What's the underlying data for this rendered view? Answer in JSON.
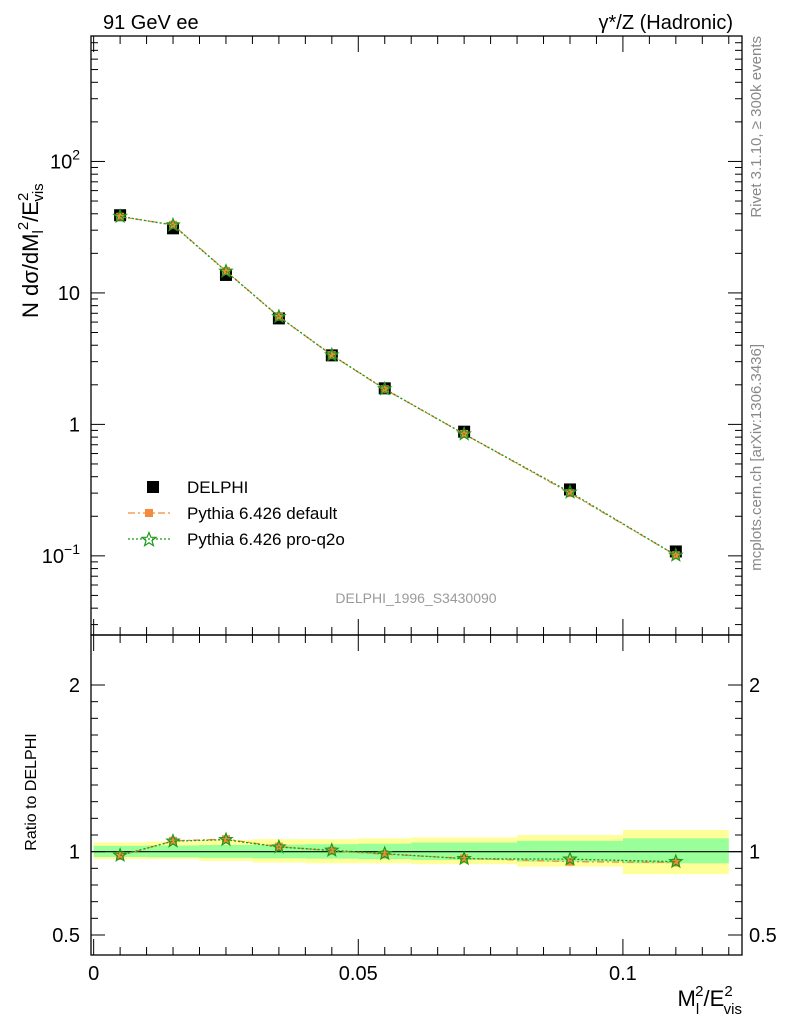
{
  "header": {
    "left_label": "91 GeV ee",
    "right_label": "γ*/Z (Hadronic)"
  },
  "side_labels": {
    "rivet": "Rivet 3.1.10, ≥ 300k events",
    "mcplots": "mcplots.cern.ch [arXiv:1306.3436]"
  },
  "watermark": "DELPHI_1996_S3430090",
  "chart_data": [
    {
      "type": "scatter",
      "panel": "main",
      "ylabel": "N dσ/dM_l^2/E_vis^2",
      "yscale": "log",
      "ylim": [
        0.025,
        900
      ],
      "xlim": [
        -0.0005,
        0.1225
      ],
      "y_tick_labels": [
        "10^-1",
        "1",
        "10",
        "10^2"
      ],
      "legend_position": "bottom-left",
      "series": [
        {
          "name": "DELPHI",
          "style": "black-square-markers",
          "color": "#000000",
          "x": [
            0.005,
            0.015,
            0.025,
            0.035,
            0.045,
            0.055,
            0.07,
            0.09,
            0.11
          ],
          "y": [
            39.0,
            31.0,
            13.7,
            6.4,
            3.35,
            1.88,
            0.88,
            0.32,
            0.108
          ]
        },
        {
          "name": "Pythia 6.426 default",
          "style": "orange-dashdot-squares",
          "color": "#f58a3c",
          "x": [
            0.005,
            0.015,
            0.025,
            0.035,
            0.045,
            0.055,
            0.07,
            0.09,
            0.11
          ],
          "y": [
            38.0,
            33.0,
            14.7,
            6.6,
            3.36,
            1.85,
            0.845,
            0.3,
            0.101
          ]
        },
        {
          "name": "Pythia 6.426 pro-q2o",
          "style": "green-dotted-stars",
          "color": "#1a9a1a",
          "x": [
            0.005,
            0.015,
            0.025,
            0.035,
            0.045,
            0.055,
            0.07,
            0.09,
            0.11
          ],
          "y": [
            38.2,
            32.8,
            14.6,
            6.6,
            3.37,
            1.86,
            0.845,
            0.305,
            0.101
          ]
        }
      ]
    },
    {
      "type": "scatter",
      "panel": "ratio",
      "ylabel": "Ratio to DELPHI",
      "xlabel": "M_l^2/E_vis^2",
      "ylim": [
        0.38,
        2.3
      ],
      "y_ticks": [
        0.5,
        1,
        2
      ],
      "x_ticks": [
        0,
        0.05,
        0.1
      ],
      "bands": {
        "x_edges": [
          0.0,
          0.01,
          0.02,
          0.03,
          0.04,
          0.05,
          0.06,
          0.08,
          0.1,
          0.12
        ],
        "yellow_lo": [
          0.955,
          0.955,
          0.945,
          0.935,
          0.93,
          0.93,
          0.925,
          0.91,
          0.865
        ],
        "yellow_hi": [
          1.055,
          1.06,
          1.07,
          1.075,
          1.075,
          1.08,
          1.085,
          1.1,
          1.13
        ],
        "green_lo": [
          0.968,
          0.966,
          0.963,
          0.96,
          0.958,
          0.955,
          0.95,
          0.94,
          0.93
        ],
        "green_hi": [
          1.035,
          1.037,
          1.04,
          1.042,
          1.045,
          1.048,
          1.055,
          1.065,
          1.08
        ],
        "yellow_color": "#ffff99",
        "green_color": "#99ff99"
      },
      "series": [
        {
          "name": "Pythia 6.426 default",
          "color": "#f58a3c",
          "x": [
            0.005,
            0.015,
            0.025,
            0.035,
            0.045,
            0.055,
            0.07,
            0.09,
            0.11
          ],
          "y": [
            0.975,
            1.065,
            1.075,
            1.03,
            1.005,
            0.985,
            0.96,
            0.94,
            0.935
          ]
        },
        {
          "name": "Pythia 6.426 pro-q2o",
          "color": "#1a9a1a",
          "x": [
            0.005,
            0.015,
            0.025,
            0.035,
            0.045,
            0.055,
            0.07,
            0.09,
            0.11
          ],
          "y": [
            0.978,
            1.063,
            1.072,
            1.028,
            1.008,
            0.988,
            0.958,
            0.955,
            0.94
          ]
        }
      ]
    }
  ]
}
